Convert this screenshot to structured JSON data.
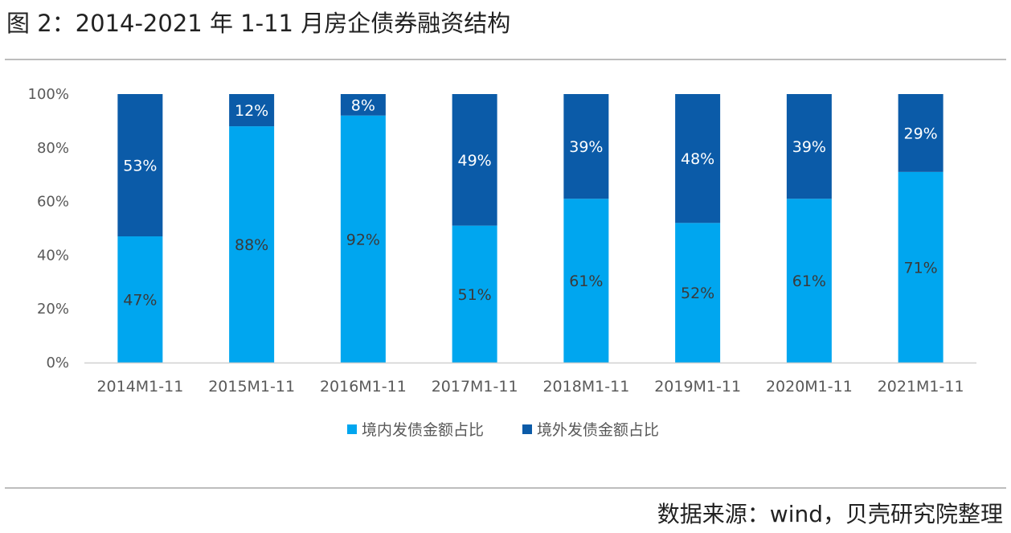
{
  "figure": {
    "title": "图 2：2014-2021 年 1-11 月房企债券融资结构",
    "source": "数据来源：wind，贝壳研究院整理"
  },
  "chart_data": {
    "type": "bar",
    "stacked": true,
    "categories": [
      "2014M1-11",
      "2015M1-11",
      "2016M1-11",
      "2017M1-11",
      "2018M1-11",
      "2019M1-11",
      "2020M1-11",
      "2021M1-11"
    ],
    "series": [
      {
        "name": "境内发债金额占比",
        "values": [
          47,
          88,
          92,
          51,
          61,
          52,
          61,
          71
        ],
        "labels": [
          "47%",
          "88%",
          "92%",
          "51%",
          "61%",
          "52%",
          "61%",
          "71%"
        ],
        "color": "#00a6ef"
      },
      {
        "name": "境外发债金额占比",
        "values": [
          53,
          12,
          8,
          49,
          39,
          48,
          39,
          29
        ],
        "labels": [
          "53%",
          "12%",
          "8%",
          "49%",
          "39%",
          "48%",
          "39%",
          "29%"
        ],
        "color": "#0b5ba8"
      }
    ],
    "yticks": [
      "0%",
      "20%",
      "40%",
      "60%",
      "80%",
      "100%"
    ],
    "ylim": [
      0,
      100
    ],
    "grid": false,
    "legend_position": "bottom"
  }
}
